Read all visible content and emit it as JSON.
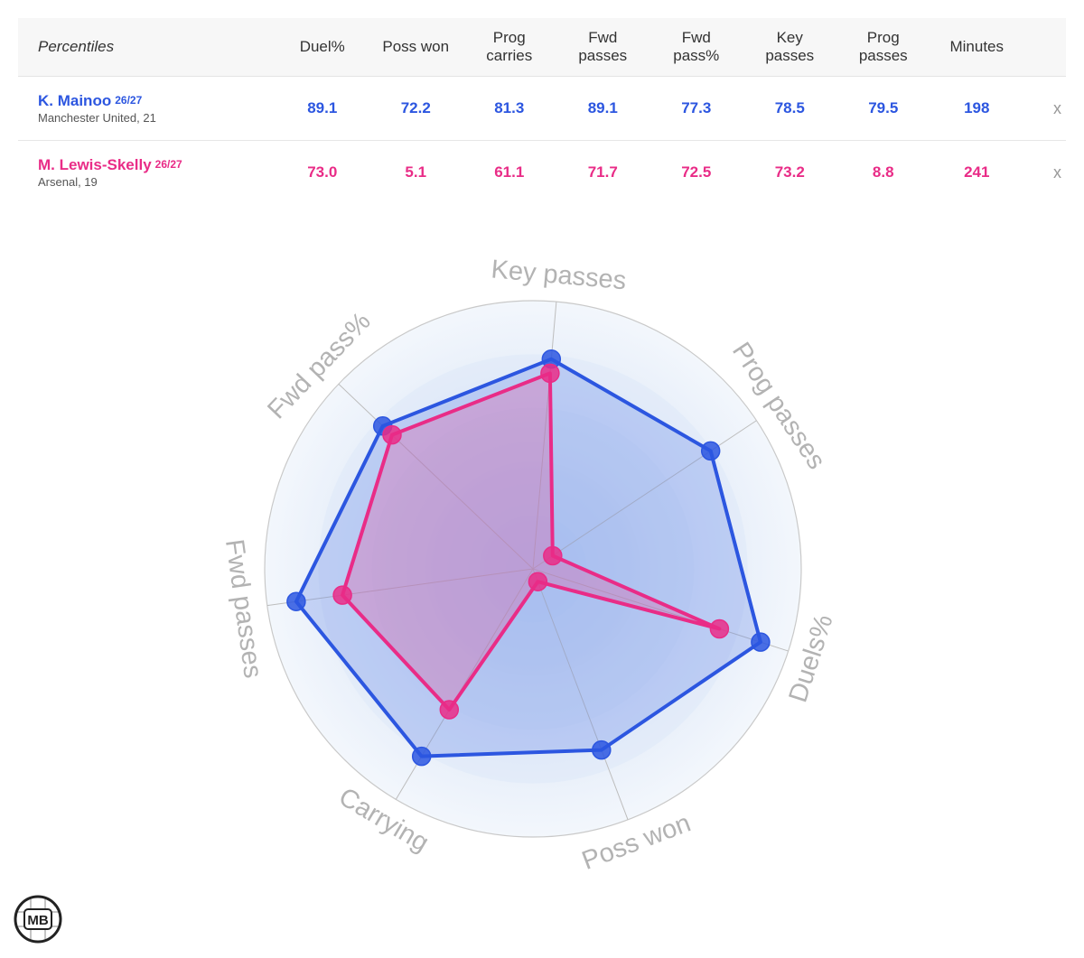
{
  "table": {
    "title": "Percentiles",
    "headers": [
      [
        "Duel%"
      ],
      [
        "Poss won"
      ],
      [
        "Prog",
        "carries"
      ],
      [
        "Fwd",
        "passes"
      ],
      [
        "Fwd",
        "pass%"
      ],
      [
        "Key",
        "passes"
      ],
      [
        "Prog",
        "passes"
      ],
      [
        "Minutes"
      ]
    ],
    "remove_label": "x"
  },
  "players": [
    {
      "name": "K. Mainoo",
      "season": "26/27",
      "team": "Manchester United, 21",
      "color": "#2c56e0",
      "values": [
        "89.1",
        "72.2",
        "81.3",
        "89.1",
        "77.3",
        "78.5",
        "79.5",
        "198"
      ]
    },
    {
      "name": "M. Lewis-Skelly",
      "season": "26/27",
      "team": "Arsenal, 19",
      "color": "#e92c87",
      "values": [
        "73.0",
        "5.1",
        "61.1",
        "71.7",
        "72.5",
        "73.2",
        "8.8",
        "241"
      ]
    }
  ],
  "chart_data": {
    "type": "radar",
    "axes": [
      "Key passes",
      "Prog passes",
      "Duels%",
      "Poss won",
      "Carrying",
      "Fwd passes",
      "Fwd pass%"
    ],
    "range": [
      0,
      100
    ],
    "series": [
      {
        "name": "K. Mainoo",
        "color": "#2c56e0",
        "values": [
          78.5,
          79.5,
          89.1,
          72.2,
          81.3,
          89.1,
          77.3
        ]
      },
      {
        "name": "M. Lewis-Skelly",
        "color": "#e92c87",
        "values": [
          73.2,
          8.8,
          73.0,
          5.1,
          61.1,
          71.7,
          72.5
        ]
      }
    ]
  },
  "logo": {
    "text": "MB"
  }
}
